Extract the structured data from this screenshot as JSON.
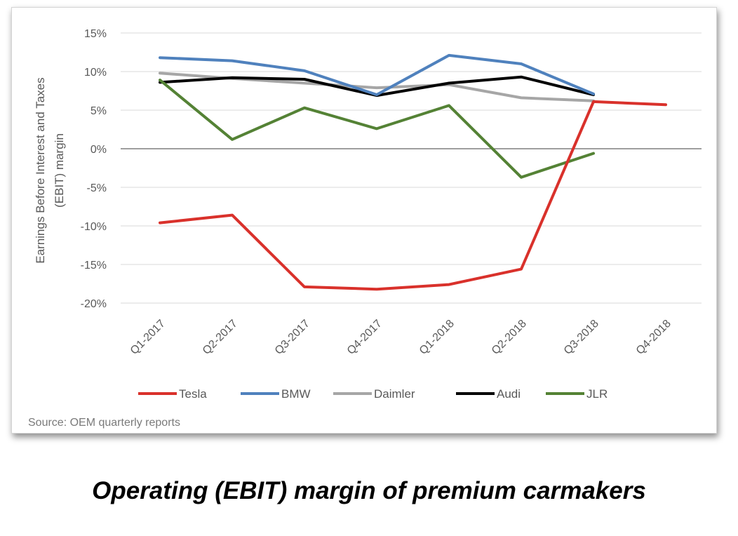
{
  "chart_data": {
    "type": "line",
    "title": "",
    "ylabel": "Earnings Before Interest and Taxes (EBIT) margin",
    "ylabel_lines": [
      "Earnings Before Interest and Taxes",
      "(EBIT) margin"
    ],
    "xlabel": "",
    "ylim": [
      -20,
      15
    ],
    "yticks": [
      15,
      10,
      5,
      0,
      -5,
      -10,
      -15,
      -20
    ],
    "ytick_labels": [
      "15%",
      "10%",
      "5%",
      "0%",
      "-5%",
      "-10%",
      "-15%",
      "-20%"
    ],
    "categories": [
      "Q1-2017",
      "Q2-2017",
      "Q3-2017",
      "Q4-2017",
      "Q1-2018",
      "Q2-2018",
      "Q3-2018",
      "Q4-2018"
    ],
    "series": [
      {
        "name": "Tesla",
        "color": "#d9312b",
        "values": [
          -9.6,
          -8.6,
          -17.9,
          -18.2,
          -17.6,
          -15.6,
          6.1,
          5.7
        ]
      },
      {
        "name": "BMW",
        "color": "#4f81bd",
        "values": [
          11.8,
          11.4,
          10.1,
          7.0,
          12.1,
          11.0,
          7.1,
          null
        ]
      },
      {
        "name": "Daimler",
        "color": "#a6a6a6",
        "values": [
          9.8,
          9.1,
          8.5,
          7.9,
          8.3,
          6.6,
          6.2,
          null
        ]
      },
      {
        "name": "Audi",
        "color": "#000000",
        "values": [
          8.6,
          9.2,
          9.0,
          6.9,
          8.5,
          9.3,
          7.0,
          null
        ]
      },
      {
        "name": "JLR",
        "color": "#548235",
        "values": [
          8.9,
          1.2,
          5.3,
          2.6,
          5.6,
          -3.7,
          -0.6,
          null
        ]
      }
    ],
    "grid": true,
    "legend_position": "bottom"
  },
  "source": "Source: OEM quarterly reports",
  "caption": "Operating (EBIT) margin of premium carmakers"
}
